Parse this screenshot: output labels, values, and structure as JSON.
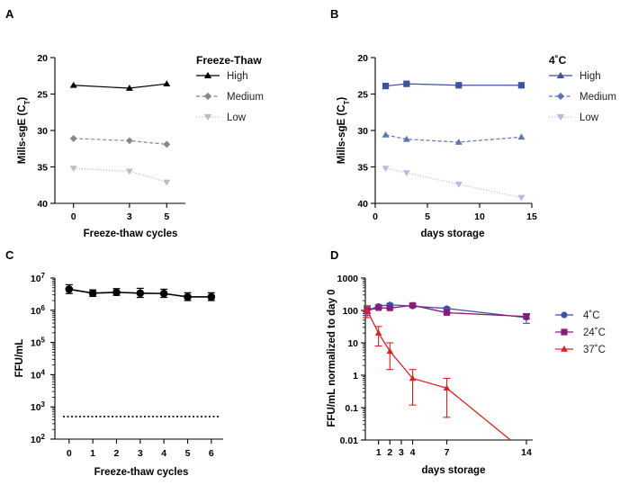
{
  "chart_data": [
    {
      "panel": "A",
      "type": "line",
      "title": "",
      "legend_title": "Freeze-Thaw",
      "xlabel": "Freeze-thaw cycles",
      "ylabel_main": "Mills-sgE (C",
      "ylabel_sub": "T",
      "ylabel_close": ")",
      "x_ticks": [
        0,
        3,
        5
      ],
      "y_ticks": [
        20,
        25,
        30,
        35,
        40
      ],
      "xlim": [
        -1,
        6
      ],
      "ylim": [
        20,
        40
      ],
      "y_inverted": true,
      "grid": false,
      "legend_position": "top-right",
      "series": [
        {
          "name": "High",
          "x": [
            0,
            3,
            5
          ],
          "y": [
            23.8,
            24.2,
            23.6
          ],
          "color": "#000000",
          "marker": "triangle-up",
          "dash": "solid"
        },
        {
          "name": "Medium",
          "x": [
            0,
            3,
            5
          ],
          "y": [
            31.1,
            31.4,
            31.9
          ],
          "color": "#888888",
          "marker": "diamond",
          "dash": "dashed"
        },
        {
          "name": "Low",
          "x": [
            0,
            3,
            5
          ],
          "y": [
            35.2,
            35.6,
            37.1
          ],
          "color": "#bdbdbd",
          "marker": "triangle-down",
          "dash": "dotted"
        }
      ]
    },
    {
      "panel": "B",
      "type": "line",
      "title": "",
      "legend_title": "4˚C",
      "xlabel": "days storage",
      "ylabel_main": "Mills-sgE (C",
      "ylabel_sub": "T",
      "ylabel_close": ")",
      "x_ticks": [
        0,
        5,
        10,
        15
      ],
      "y_ticks": [
        20,
        25,
        30,
        35,
        40
      ],
      "xlim": [
        0,
        15
      ],
      "ylim": [
        20,
        40
      ],
      "y_inverted": true,
      "grid": false,
      "legend_position": "top-right",
      "series": [
        {
          "name": "High",
          "x": [
            1,
            3,
            8,
            14
          ],
          "y": [
            23.9,
            23.6,
            23.8,
            23.8
          ],
          "color": "#3f51a3",
          "marker": "square",
          "legend_marker": "triangle-up",
          "dash": "solid"
        },
        {
          "name": "Medium",
          "x": [
            1,
            3,
            8,
            14
          ],
          "y": [
            30.6,
            31.2,
            31.6,
            30.9
          ],
          "color": "#6274b8",
          "marker": "triangle-up",
          "legend_marker": "diamond",
          "dash": "dashed"
        },
        {
          "name": "Low",
          "x": [
            1,
            3,
            8,
            14
          ],
          "y": [
            35.2,
            35.8,
            37.4,
            39.2
          ],
          "color": "#b3bde2",
          "marker": "triangle-down",
          "dash": "dotted"
        }
      ]
    },
    {
      "panel": "C",
      "type": "scatter",
      "title": "",
      "xlabel": "Freeze-thaw cycles",
      "ylabel": "FFU/mL",
      "x_ticks": [
        0,
        1,
        2,
        3,
        4,
        5,
        6
      ],
      "y_log": true,
      "y_tick_exponents": [
        2,
        3,
        4,
        5,
        6,
        7
      ],
      "y_tick_base": "10",
      "xlim": [
        -0.6,
        6.5
      ],
      "ylim": [
        100,
        10000000
      ],
      "grid": false,
      "detection_limit": 500,
      "series": [
        {
          "name": "FFU/mL",
          "x": [
            0,
            1,
            2,
            3,
            4,
            5,
            6
          ],
          "y": [
            4500000,
            3400000,
            3600000,
            3400000,
            3300000,
            2600000,
            2600000
          ],
          "err_lo": [
            3300000,
            2700000,
            2900000,
            2500000,
            2500000,
            2000000,
            2000000
          ],
          "err_hi": [
            6200000,
            4300000,
            4700000,
            4800000,
            4500000,
            3500000,
            3500000
          ],
          "color": "#000000"
        }
      ]
    },
    {
      "panel": "D",
      "type": "line",
      "title": "",
      "xlabel": "days storage",
      "ylabel": "FFU/mL normalized to day 0",
      "x_ticks": [
        1,
        2,
        3,
        4,
        7,
        14
      ],
      "y_log": true,
      "y_ticks": [
        0.01,
        0.1,
        1,
        10,
        100,
        1000
      ],
      "y_tick_labels": [
        "0.01",
        "0.1",
        "1",
        "10",
        "100",
        "1000"
      ],
      "xlim": [
        0,
        14
      ],
      "ylim": [
        0.01,
        1000
      ],
      "grid": false,
      "legend_position": "top-right",
      "series": [
        {
          "name": "4˚C",
          "x": [
            0,
            1,
            2,
            4,
            7,
            14
          ],
          "y": [
            100,
            135,
            150,
            135,
            115,
            60
          ],
          "err_lo": [
            70,
            120,
            140,
            125,
            105,
            40
          ],
          "err_hi": [
            130,
            150,
            165,
            145,
            125,
            80
          ],
          "color": "#3f51a3",
          "marker": "circle"
        },
        {
          "name": "24˚C",
          "x": [
            0,
            1,
            2,
            4,
            7,
            14
          ],
          "y": [
            100,
            120,
            118,
            145,
            85,
            65
          ],
          "err_lo": [
            80,
            110,
            108,
            130,
            78,
            55
          ],
          "err_hi": [
            120,
            130,
            128,
            160,
            92,
            75
          ],
          "color": "#8b1a7c",
          "marker": "square"
        },
        {
          "name": "37˚C",
          "x": [
            0,
            1,
            2,
            4,
            7,
            12.6
          ],
          "y": [
            100,
            20,
            5.5,
            0.8,
            0.4,
            0.01
          ],
          "err_lo": [
            60,
            8,
            1.5,
            0.12,
            0.05,
            0.01
          ],
          "err_hi": [
            140,
            32,
            10,
            1.5,
            0.8,
            0.01
          ],
          "color": "#e02020",
          "marker": "triangle-up"
        }
      ]
    }
  ]
}
